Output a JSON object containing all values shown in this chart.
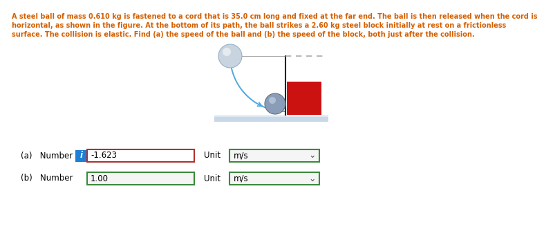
{
  "text_lines": [
    "A steel ball of mass 0.610 kg is fastened to a cord that is 35.0 cm long and fixed at the far end. The ball is then released when the cord is",
    "horizontal, as shown in the figure. At the bottom of its path, the ball strikes a 2.60 kg steel block initially at rest on a frictionless",
    "surface. The collision is elastic. Find (a) the speed of the ball and (b) the speed of the block, both just after the collision."
  ],
  "text_color": "#d45f00",
  "label_a": "(a)   Number",
  "label_b": "(b)   Number",
  "value_a": "-1.623",
  "value_b": "1.00",
  "unit_a": "m/s",
  "unit_b": "m/s",
  "unit_label": "Unit",
  "info_btn_color": "#1e7fd4",
  "input_border_a": "#b03030",
  "input_border_b": "#3a8a3a",
  "unit_border": "#3a8a3a",
  "input_bg_a": "#ffffff",
  "input_bg_b": "#f5f5f5",
  "unit_bg": "#f5f5f5",
  "background": "#ffffff"
}
